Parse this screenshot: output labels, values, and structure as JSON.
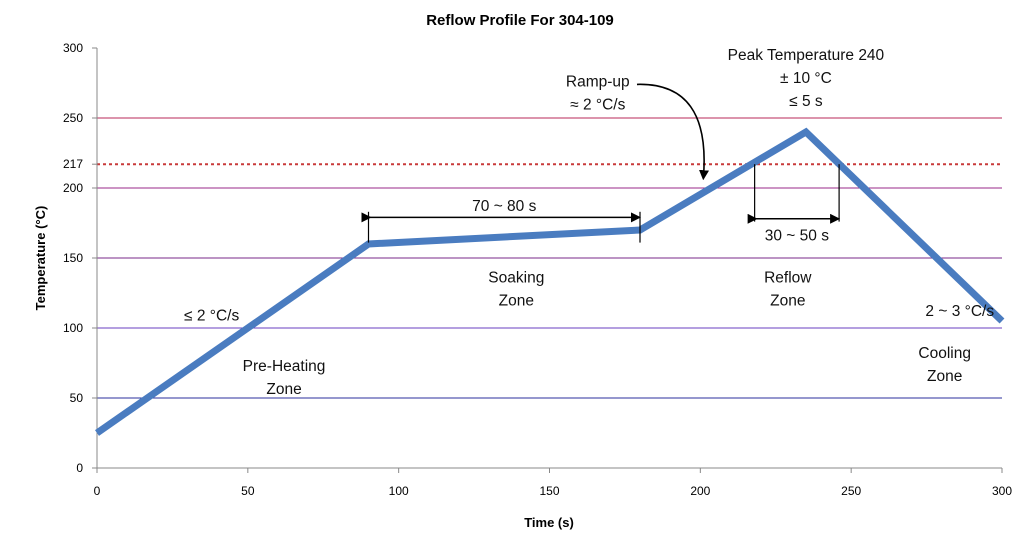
{
  "chart_data": {
    "type": "line",
    "title": "Reflow Profile For 304-109",
    "xlabel": "Time (s)",
    "ylabel": "Temperature (°C)",
    "xlim": [
      0,
      300
    ],
    "ylim": [
      0,
      300
    ],
    "x_ticks": [
      "0",
      "50",
      "100",
      "150",
      "200",
      "250",
      "300"
    ],
    "y_ticks": [
      "0",
      "50",
      "100",
      "150",
      "200",
      "250",
      "300"
    ],
    "extra_y_tick": {
      "value": 217,
      "label": "217"
    },
    "series": [
      {
        "color": "#4a7cc0",
        "points": [
          {
            "x": 0,
            "y": 25
          },
          {
            "x": 90,
            "y": 160
          },
          {
            "x": 180,
            "y": 170
          },
          {
            "x": 235,
            "y": 240
          },
          {
            "x": 300,
            "y": 105
          }
        ]
      }
    ],
    "reference_lines": [
      {
        "y": 50,
        "color": "#2b2f9c",
        "style": "solid"
      },
      {
        "y": 100,
        "color": "#6a3fc0",
        "style": "solid"
      },
      {
        "y": 150,
        "color": "#7a2a8a",
        "style": "solid"
      },
      {
        "y": 200,
        "color": "#9a2a8a",
        "style": "solid"
      },
      {
        "y": 217,
        "color": "#c83a3a",
        "style": "dotted"
      },
      {
        "y": 250,
        "color": "#b8285a",
        "style": "solid"
      }
    ],
    "spans": [
      {
        "label": "70 ~ 80 s",
        "x1": 90,
        "x2": 180,
        "y": 179,
        "label_y": 187,
        "tick_top": 183,
        "tick_bottom": 161
      },
      {
        "label": "30 ~ 50 s",
        "x1": 218,
        "x2": 246,
        "y": 178,
        "label_y": 166,
        "tick_top": 217,
        "tick_bottom": 176
      }
    ],
    "annotations": [
      {
        "lines": [
          "Pre-Heating",
          "Zone"
        ],
        "x": 62,
        "y": 73
      },
      {
        "lines": [
          "Soaking",
          "Zone"
        ],
        "x": 139,
        "y": 136
      },
      {
        "lines": [
          "Reflow",
          "Zone"
        ],
        "x": 229,
        "y": 136
      },
      {
        "lines": [
          "Cooling",
          "Zone"
        ],
        "x": 281,
        "y": 82
      },
      {
        "lines": [
          "≤ 2 °C/s"
        ],
        "x": 38,
        "y": 109
      },
      {
        "lines": [
          "2 ~ 3 °C/s"
        ],
        "x": 286,
        "y": 112
      },
      {
        "lines": [
          "Ramp-up",
          "≈ 2 °C/s"
        ],
        "x": 166,
        "y": 276
      },
      {
        "lines": [
          "Peak Temperature 240",
          "± 10 °C",
          "≤ 5 s"
        ],
        "x": 235,
        "y": 295
      }
    ],
    "arrow": {
      "from": [
        179,
        274
      ],
      "to": [
        201,
        207
      ]
    }
  }
}
